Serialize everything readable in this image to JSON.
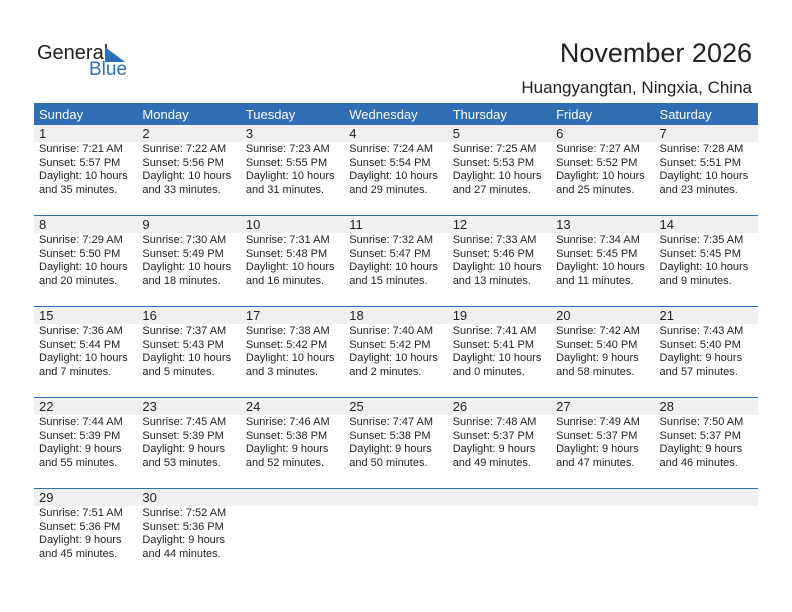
{
  "logo": {
    "line1": "General",
    "line2": "Blue"
  },
  "title": "November 2026",
  "location": "Huangyangtan, Ningxia, China",
  "weekdays": [
    "Sunday",
    "Monday",
    "Tuesday",
    "Wednesday",
    "Thursday",
    "Friday",
    "Saturday"
  ],
  "days": [
    {
      "day": "1",
      "sunrise": "Sunrise: 7:21 AM",
      "sunset": "Sunset: 5:57 PM",
      "daylight": "Daylight: 10 hours",
      "minutes": "and 35 minutes."
    },
    {
      "day": "2",
      "sunrise": "Sunrise: 7:22 AM",
      "sunset": "Sunset: 5:56 PM",
      "daylight": "Daylight: 10 hours",
      "minutes": "and 33 minutes."
    },
    {
      "day": "3",
      "sunrise": "Sunrise: 7:23 AM",
      "sunset": "Sunset: 5:55 PM",
      "daylight": "Daylight: 10 hours",
      "minutes": "and 31 minutes."
    },
    {
      "day": "4",
      "sunrise": "Sunrise: 7:24 AM",
      "sunset": "Sunset: 5:54 PM",
      "daylight": "Daylight: 10 hours",
      "minutes": "and 29 minutes."
    },
    {
      "day": "5",
      "sunrise": "Sunrise: 7:25 AM",
      "sunset": "Sunset: 5:53 PM",
      "daylight": "Daylight: 10 hours",
      "minutes": "and 27 minutes."
    },
    {
      "day": "6",
      "sunrise": "Sunrise: 7:27 AM",
      "sunset": "Sunset: 5:52 PM",
      "daylight": "Daylight: 10 hours",
      "minutes": "and 25 minutes."
    },
    {
      "day": "7",
      "sunrise": "Sunrise: 7:28 AM",
      "sunset": "Sunset: 5:51 PM",
      "daylight": "Daylight: 10 hours",
      "minutes": "and 23 minutes."
    },
    {
      "day": "8",
      "sunrise": "Sunrise: 7:29 AM",
      "sunset": "Sunset: 5:50 PM",
      "daylight": "Daylight: 10 hours",
      "minutes": "and 20 minutes."
    },
    {
      "day": "9",
      "sunrise": "Sunrise: 7:30 AM",
      "sunset": "Sunset: 5:49 PM",
      "daylight": "Daylight: 10 hours",
      "minutes": "and 18 minutes."
    },
    {
      "day": "10",
      "sunrise": "Sunrise: 7:31 AM",
      "sunset": "Sunset: 5:48 PM",
      "daylight": "Daylight: 10 hours",
      "minutes": "and 16 minutes."
    },
    {
      "day": "11",
      "sunrise": "Sunrise: 7:32 AM",
      "sunset": "Sunset: 5:47 PM",
      "daylight": "Daylight: 10 hours",
      "minutes": "and 15 minutes."
    },
    {
      "day": "12",
      "sunrise": "Sunrise: 7:33 AM",
      "sunset": "Sunset: 5:46 PM",
      "daylight": "Daylight: 10 hours",
      "minutes": "and 13 minutes."
    },
    {
      "day": "13",
      "sunrise": "Sunrise: 7:34 AM",
      "sunset": "Sunset: 5:45 PM",
      "daylight": "Daylight: 10 hours",
      "minutes": "and 11 minutes."
    },
    {
      "day": "14",
      "sunrise": "Sunrise: 7:35 AM",
      "sunset": "Sunset: 5:45 PM",
      "daylight": "Daylight: 10 hours",
      "minutes": "and 9 minutes."
    },
    {
      "day": "15",
      "sunrise": "Sunrise: 7:36 AM",
      "sunset": "Sunset: 5:44 PM",
      "daylight": "Daylight: 10 hours",
      "minutes": "and 7 minutes."
    },
    {
      "day": "16",
      "sunrise": "Sunrise: 7:37 AM",
      "sunset": "Sunset: 5:43 PM",
      "daylight": "Daylight: 10 hours",
      "minutes": "and 5 minutes."
    },
    {
      "day": "17",
      "sunrise": "Sunrise: 7:38 AM",
      "sunset": "Sunset: 5:42 PM",
      "daylight": "Daylight: 10 hours",
      "minutes": "and 3 minutes."
    },
    {
      "day": "18",
      "sunrise": "Sunrise: 7:40 AM",
      "sunset": "Sunset: 5:42 PM",
      "daylight": "Daylight: 10 hours",
      "minutes": "and 2 minutes."
    },
    {
      "day": "19",
      "sunrise": "Sunrise: 7:41 AM",
      "sunset": "Sunset: 5:41 PM",
      "daylight": "Daylight: 10 hours",
      "minutes": "and 0 minutes."
    },
    {
      "day": "20",
      "sunrise": "Sunrise: 7:42 AM",
      "sunset": "Sunset: 5:40 PM",
      "daylight": "Daylight: 9 hours",
      "minutes": "and 58 minutes."
    },
    {
      "day": "21",
      "sunrise": "Sunrise: 7:43 AM",
      "sunset": "Sunset: 5:40 PM",
      "daylight": "Daylight: 9 hours",
      "minutes": "and 57 minutes."
    },
    {
      "day": "22",
      "sunrise": "Sunrise: 7:44 AM",
      "sunset": "Sunset: 5:39 PM",
      "daylight": "Daylight: 9 hours",
      "minutes": "and 55 minutes."
    },
    {
      "day": "23",
      "sunrise": "Sunrise: 7:45 AM",
      "sunset": "Sunset: 5:39 PM",
      "daylight": "Daylight: 9 hours",
      "minutes": "and 53 minutes."
    },
    {
      "day": "24",
      "sunrise": "Sunrise: 7:46 AM",
      "sunset": "Sunset: 5:38 PM",
      "daylight": "Daylight: 9 hours",
      "minutes": "and 52 minutes."
    },
    {
      "day": "25",
      "sunrise": "Sunrise: 7:47 AM",
      "sunset": "Sunset: 5:38 PM",
      "daylight": "Daylight: 9 hours",
      "minutes": "and 50 minutes."
    },
    {
      "day": "26",
      "sunrise": "Sunrise: 7:48 AM",
      "sunset": "Sunset: 5:37 PM",
      "daylight": "Daylight: 9 hours",
      "minutes": "and 49 minutes."
    },
    {
      "day": "27",
      "sunrise": "Sunrise: 7:49 AM",
      "sunset": "Sunset: 5:37 PM",
      "daylight": "Daylight: 9 hours",
      "minutes": "and 47 minutes."
    },
    {
      "day": "28",
      "sunrise": "Sunrise: 7:50 AM",
      "sunset": "Sunset: 5:37 PM",
      "daylight": "Daylight: 9 hours",
      "minutes": "and 46 minutes."
    },
    {
      "day": "29",
      "sunrise": "Sunrise: 7:51 AM",
      "sunset": "Sunset: 5:36 PM",
      "daylight": "Daylight: 9 hours",
      "minutes": "and 45 minutes."
    },
    {
      "day": "30",
      "sunrise": "Sunrise: 7:52 AM",
      "sunset": "Sunset: 5:36 PM",
      "daylight": "Daylight: 9 hours",
      "minutes": "and 44 minutes."
    }
  ],
  "colors": {
    "header": "#2f6eb5",
    "brand_blue": "#2a72b9",
    "day_band": "#f0f0f0"
  }
}
